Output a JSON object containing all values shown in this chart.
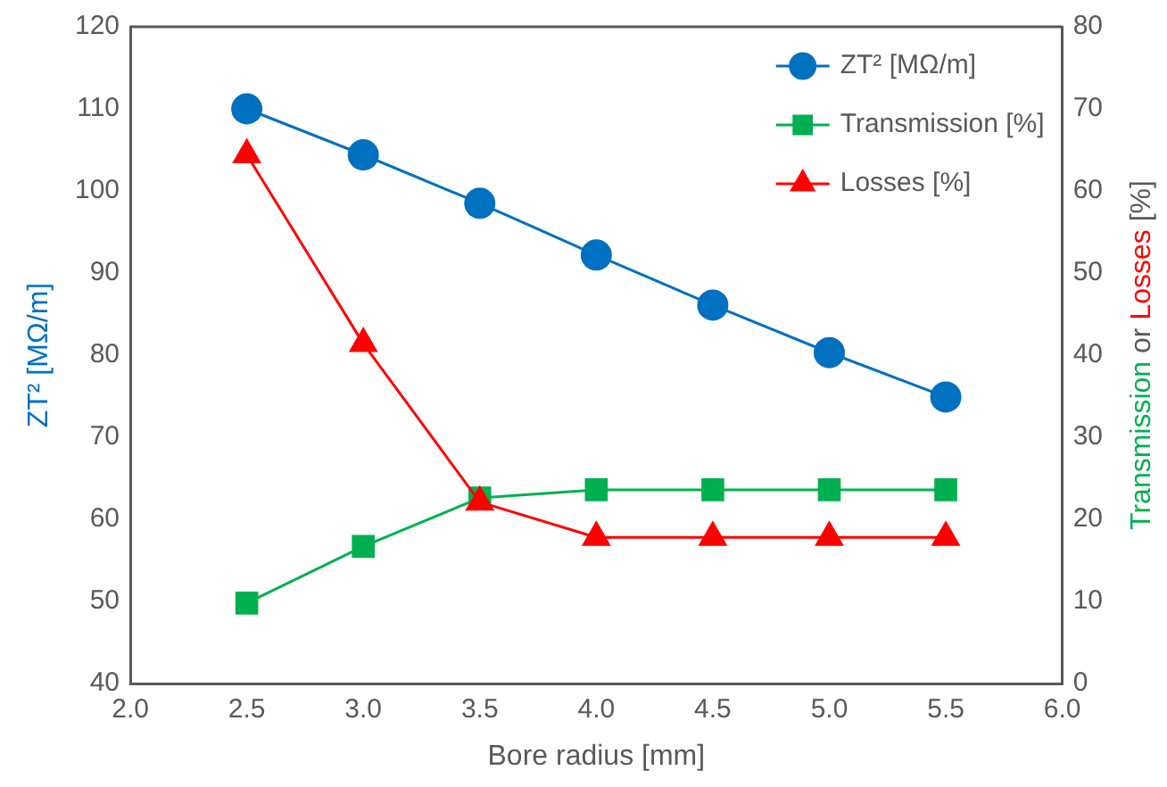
{
  "chart_data": {
    "type": "line",
    "xlabel": "Bore radius [mm]",
    "ylabel": "ZT² [MΩ/m]",
    "y2label": "Transmission or Losses [%]",
    "x": [
      2.5,
      3.0,
      3.5,
      4.0,
      4.5,
      5.0,
      5.5
    ],
    "series": [
      {
        "name": "ZT² [MΩ/m]",
        "color": "#0070c0",
        "marker": "circle",
        "values": [
          110.0,
          104.4,
          98.5,
          92.2,
          86.1,
          80.3,
          74.9
        ]
      },
      {
        "name": "Transmission [%]",
        "color": "#00b050",
        "marker": "square",
        "axis": "y2",
        "values": [
          9.8,
          16.7,
          22.6,
          23.6,
          23.6,
          23.6,
          23.6
        ]
      },
      {
        "name": "Losses [%]",
        "color": "#ff0000",
        "marker": "triangle",
        "axis": "y2",
        "values": [
          64.4,
          41.4,
          22.1,
          17.8,
          17.8,
          17.8,
          17.8
        ]
      }
    ],
    "xlim": [
      2.0,
      6.0
    ],
    "xticks": [
      {
        "value": 2.0,
        "label": "2.0"
      },
      {
        "value": 2.5,
        "label": "2.5"
      },
      {
        "value": 3.0,
        "label": "3.0"
      },
      {
        "value": 3.5,
        "label": "3.5"
      },
      {
        "value": 4.0,
        "label": "4.0"
      },
      {
        "value": 4.5,
        "label": "4.5"
      },
      {
        "value": 5.0,
        "label": "5.0"
      },
      {
        "value": 5.5,
        "label": "5.5"
      },
      {
        "value": 6.0,
        "label": "6.0"
      }
    ],
    "ylim": [
      40,
      120
    ],
    "yticks": [
      40,
      50,
      60,
      70,
      80,
      90,
      100,
      110,
      120
    ],
    "y2lim": [
      0,
      80
    ],
    "y2ticks": [
      0,
      10,
      20,
      30,
      40,
      50,
      60,
      70,
      80
    ],
    "legend": "top right",
    "grid": false
  }
}
